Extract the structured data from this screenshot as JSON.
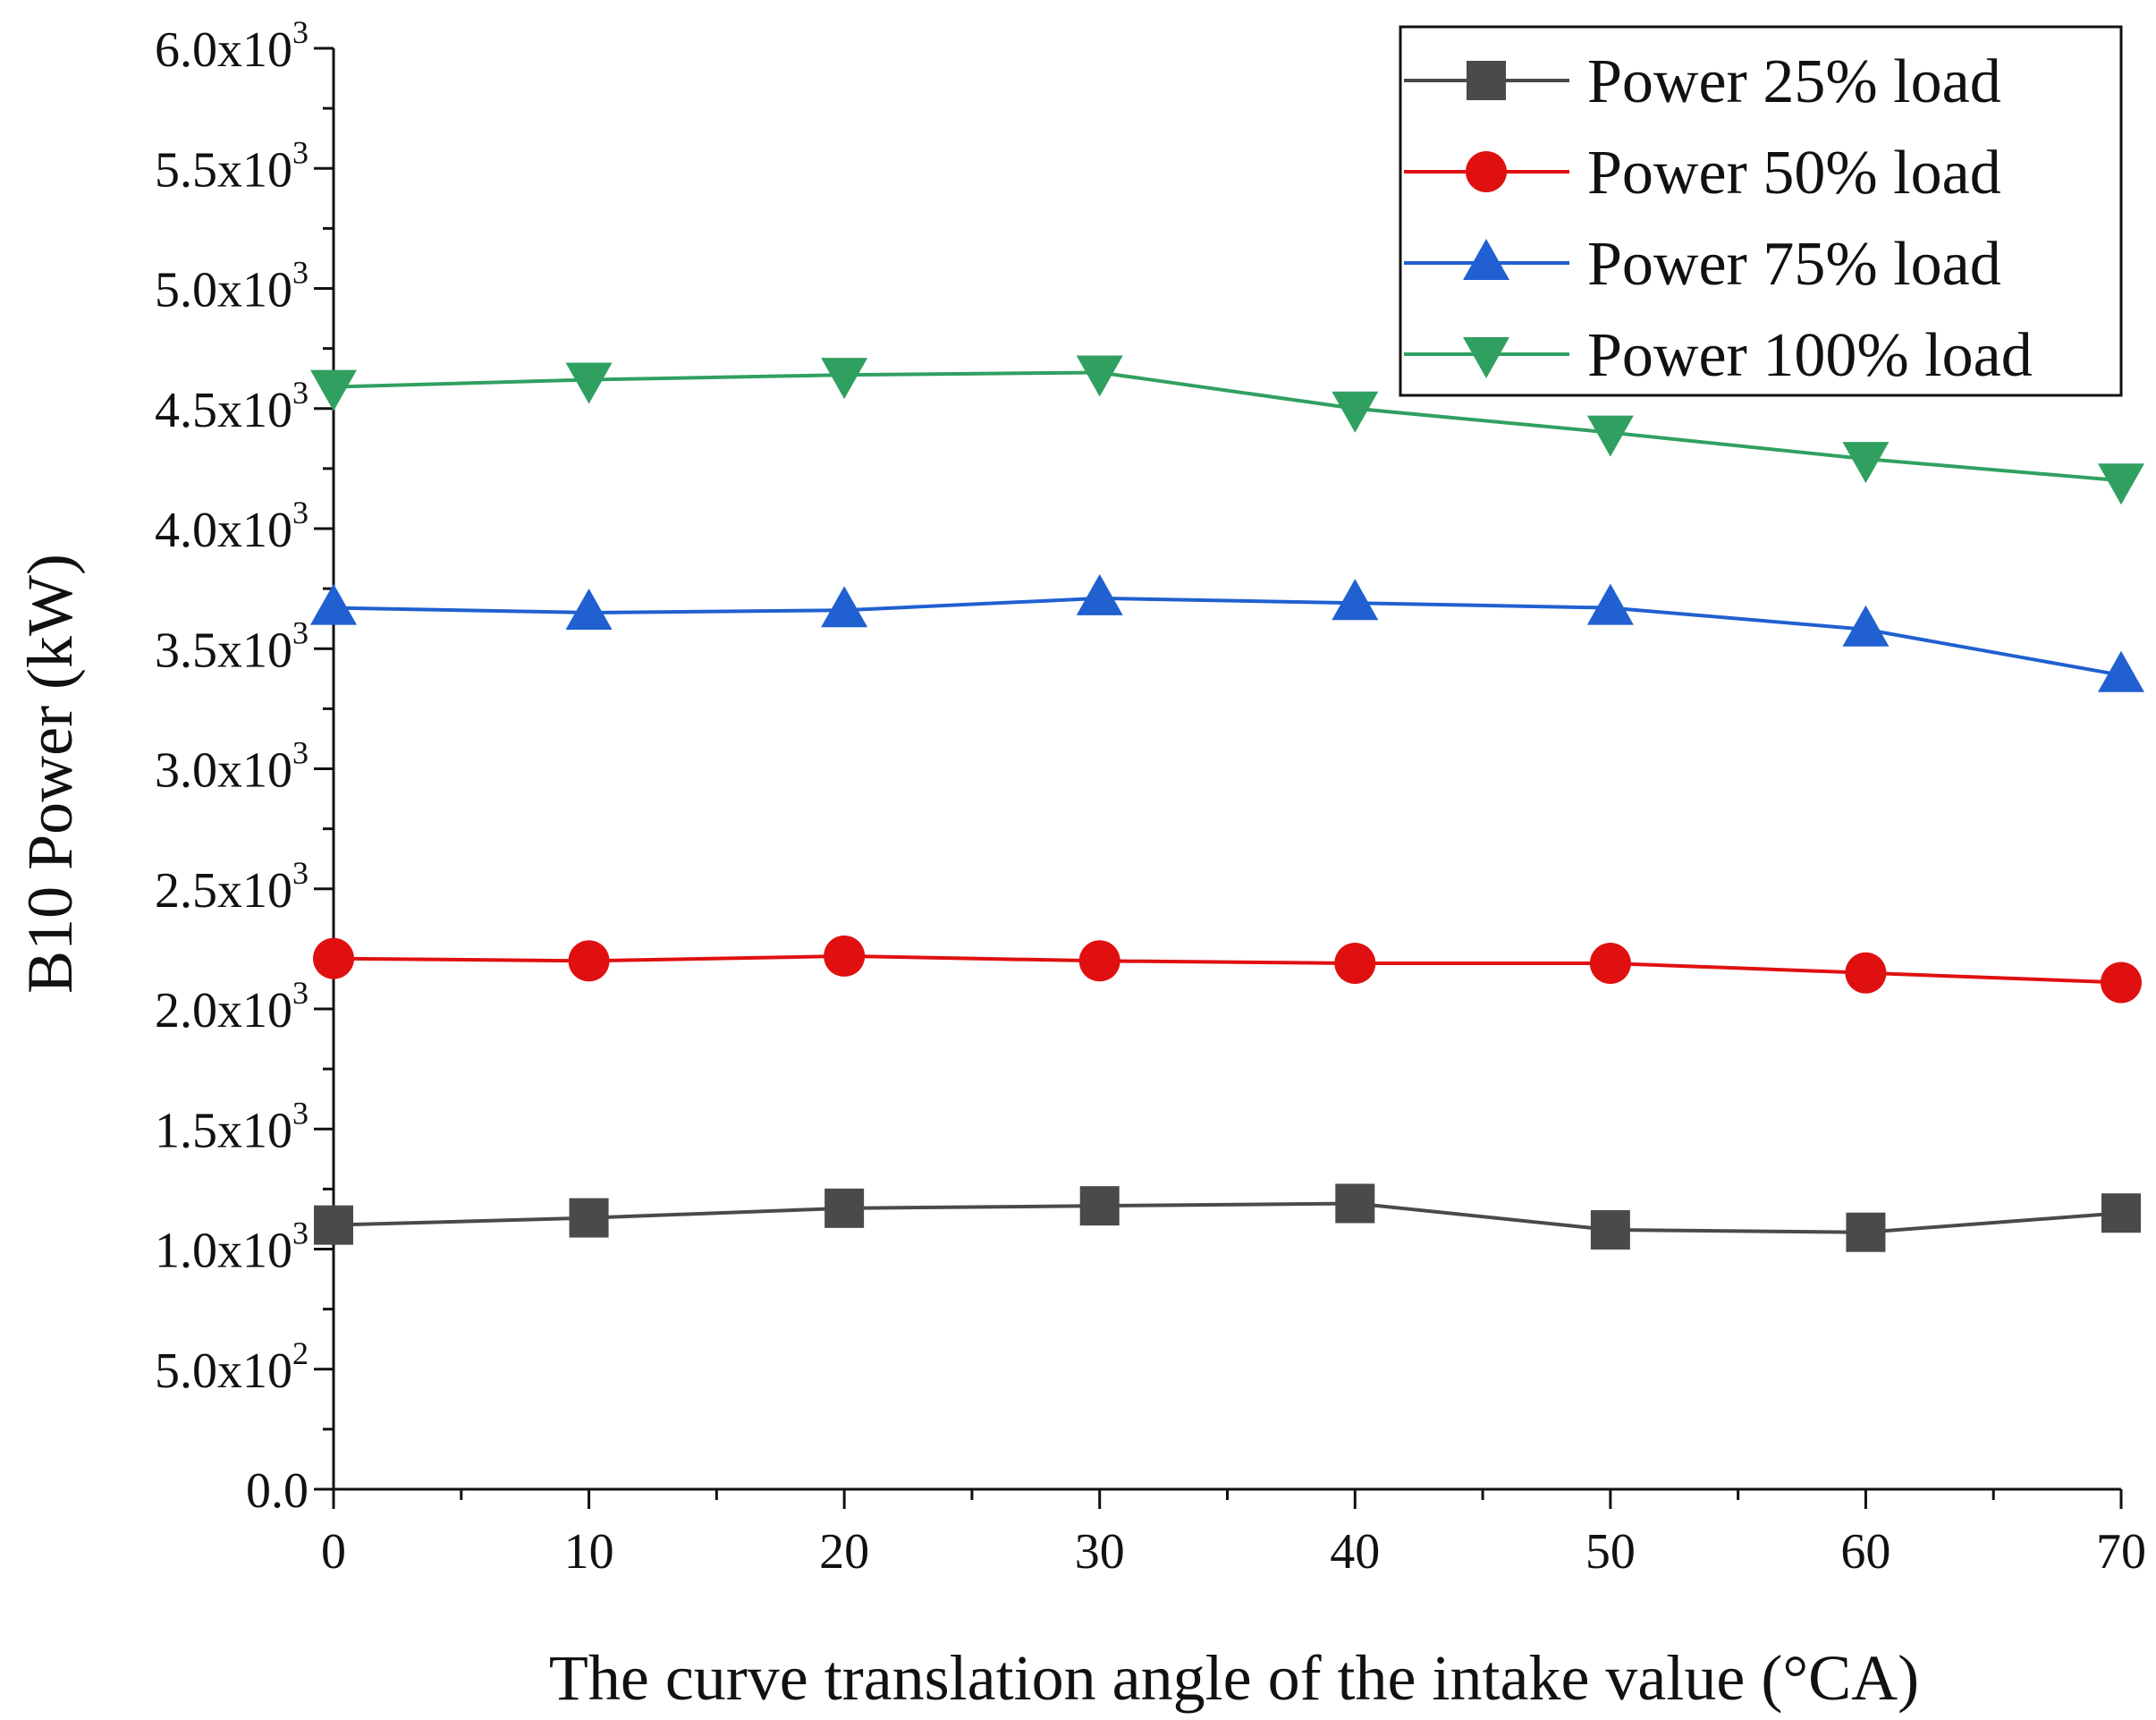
{
  "chart_data": {
    "type": "line",
    "title": "",
    "xlabel": "The curve translation angle of the intake value (°CA)",
    "ylabel": "B10 Power (kW)",
    "xlim": [
      0,
      70
    ],
    "ylim": [
      0,
      6000
    ],
    "x": [
      0,
      10,
      20,
      30,
      40,
      50,
      60,
      70
    ],
    "x_ticks": [
      "0",
      "10",
      "20",
      "30",
      "40",
      "50",
      "60",
      "70"
    ],
    "y_ticks": [
      {
        "mant": "0.0",
        "exp": ""
      },
      {
        "mant": "5.0x10",
        "exp": "2"
      },
      {
        "mant": "1.0x10",
        "exp": "3"
      },
      {
        "mant": "1.5x10",
        "exp": "3"
      },
      {
        "mant": "2.0x10",
        "exp": "3"
      },
      {
        "mant": "2.5x10",
        "exp": "3"
      },
      {
        "mant": "3.0x10",
        "exp": "3"
      },
      {
        "mant": "3.5x10",
        "exp": "3"
      },
      {
        "mant": "4.0x10",
        "exp": "3"
      },
      {
        "mant": "4.5x10",
        "exp": "3"
      },
      {
        "mant": "5.0x10",
        "exp": "3"
      },
      {
        "mant": "5.5x10",
        "exp": "3"
      },
      {
        "mant": "6.0x10",
        "exp": "3"
      }
    ],
    "grid": false,
    "legend_position": "top-right",
    "series": [
      {
        "name": "Power 25% load",
        "color": "#4a4a4a",
        "marker": "square",
        "values": [
          1100,
          1130,
          1170,
          1180,
          1190,
          1080,
          1070,
          1150
        ]
      },
      {
        "name": "Power 50% load",
        "color": "#e01010",
        "marker": "circle",
        "values": [
          2210,
          2200,
          2220,
          2200,
          2190,
          2190,
          2150,
          2110
        ]
      },
      {
        "name": "Power 75% load",
        "color": "#2060d0",
        "marker": "triangle-up",
        "values": [
          3670,
          3650,
          3660,
          3710,
          3690,
          3670,
          3580,
          3390
        ]
      },
      {
        "name": "Power 100% load",
        "color": "#30a060",
        "marker": "triangle-down",
        "values": [
          4590,
          4620,
          4640,
          4650,
          4500,
          4400,
          4290,
          4200
        ]
      }
    ]
  }
}
